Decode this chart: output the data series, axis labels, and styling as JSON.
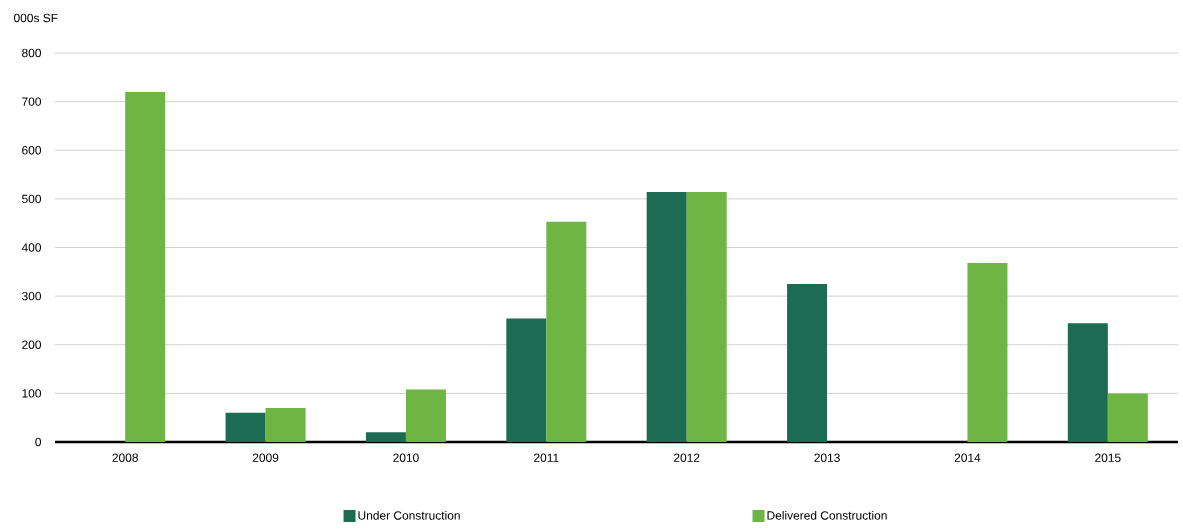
{
  "chart_data": {
    "type": "bar",
    "ylabel": "000s SF",
    "categories": [
      "2008",
      "2009",
      "2010",
      "2011",
      "2012",
      "2013",
      "2014",
      "2015"
    ],
    "series": [
      {
        "name": "Under Construction",
        "color": "#1d6b52",
        "values": [
          null,
          60,
          20,
          254,
          514,
          325,
          null,
          244
        ]
      },
      {
        "name": "Delivered Construction",
        "color": "#6eb543",
        "values": [
          720,
          70,
          108,
          453,
          514,
          null,
          368,
          100
        ]
      }
    ],
    "ylim": [
      0,
      800
    ],
    "yticks": [
      0,
      100,
      200,
      300,
      400,
      500,
      600,
      700,
      800
    ],
    "grid": "y",
    "legend": "bottom"
  }
}
